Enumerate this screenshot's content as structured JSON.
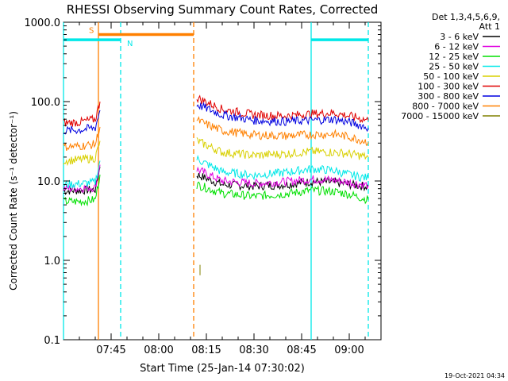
{
  "chart_data": {
    "type": "line",
    "title": "RHESSI Observing Summary Count Rates, Corrected",
    "xlabel": "Start Time (25-Jan-14 07:30:02)",
    "ylabel": "Corrected Count Rate (s⁻¹ detector⁻¹)",
    "xlim": [
      0,
      100
    ],
    "ylim": [
      0.1,
      1000
    ],
    "y_scale": "log",
    "x_ticks": [
      {
        "label": "07:45",
        "minutes": 15
      },
      {
        "label": "08:00",
        "minutes": 30
      },
      {
        "label": "08:15",
        "minutes": 45
      },
      {
        "label": "08:30",
        "minutes": 60
      },
      {
        "label": "08:45",
        "minutes": 75
      },
      {
        "label": "09:00",
        "minutes": 90
      }
    ],
    "y_ticks": [
      {
        "label": "1000.0",
        "value": 1000
      },
      {
        "label": "100.0",
        "value": 100
      },
      {
        "label": "10.0",
        "value": 10
      },
      {
        "label": "1.0",
        "value": 1
      },
      {
        "label": "0.1",
        "value": 0.1
      }
    ],
    "legend": {
      "placement": "right",
      "header": [
        "Det 1,3,4,5,6,9,",
        "Att 1"
      ],
      "entries": [
        {
          "label": "3 - 6 keV",
          "color": "#000000"
        },
        {
          "label": "6 - 12 keV",
          "color": "#e000e0"
        },
        {
          "label": "12 - 25 keV",
          "color": "#00e000"
        },
        {
          "label": "25 - 50 keV",
          "color": "#00e8e8"
        },
        {
          "label": "50 - 100 keV",
          "color": "#d8d000"
        },
        {
          "label": "100 - 300 keV",
          "color": "#e00000"
        },
        {
          "label": "300 - 800 keV",
          "color": "#0000e0"
        },
        {
          "label": "800 - 7000 keV",
          "color": "#ff8000"
        },
        {
          "label": "7000 - 15000 keV",
          "color": "#808000"
        }
      ]
    },
    "series": [
      {
        "name": "3 - 6 keV",
        "color": "#000000",
        "segments": [
          {
            "x": [
              0,
              5,
              10,
              11.5
            ],
            "y": [
              7.5,
              7.6,
              7.8,
              15
            ]
          },
          {
            "x": [
              42,
              50,
              60,
              70,
              78,
              85,
              90,
              96
            ],
            "y": [
              12,
              9.0,
              8.6,
              9.0,
              9.8,
              9.6,
              9.0,
              8.5
            ]
          }
        ]
      },
      {
        "name": "6 - 12 keV",
        "color": "#e000e0",
        "segments": [
          {
            "x": [
              0,
              5,
              10,
              11.5
            ],
            "y": [
              8.0,
              8.1,
              8.3,
              16
            ]
          },
          {
            "x": [
              42,
              50,
              60,
              70,
              78,
              85,
              90,
              96
            ],
            "y": [
              14,
              10,
              9.3,
              9.8,
              10.5,
              10.3,
              9.6,
              8.8
            ]
          }
        ]
      },
      {
        "name": "12 - 25 keV",
        "color": "#00e000",
        "segments": [
          {
            "x": [
              0,
              5,
              10,
              11.5
            ],
            "y": [
              5.5,
              5.5,
              5.8,
              12
            ]
          },
          {
            "x": [
              42,
              50,
              60,
              70,
              78,
              85,
              90,
              96
            ],
            "y": [
              9,
              7.0,
              6.4,
              6.9,
              7.6,
              7.4,
              6.8,
              5.8
            ]
          }
        ]
      },
      {
        "name": "25 - 50 keV",
        "color": "#00e8e8",
        "segments": [
          {
            "x": [
              0,
              5,
              10,
              11.5
            ],
            "y": [
              9.0,
              9.2,
              9.6,
              18
            ]
          },
          {
            "x": [
              42,
              50,
              60,
              70,
              78,
              85,
              90,
              96
            ],
            "y": [
              19,
              13,
              11.8,
              12.8,
              14.2,
              13.6,
              12,
              10.8
            ]
          }
        ]
      },
      {
        "name": "50 - 100 keV",
        "color": "#d8d000",
        "segments": [
          {
            "x": [
              0,
              5,
              10,
              11.5
            ],
            "y": [
              18,
              18.5,
              19.5,
              32
            ]
          },
          {
            "x": [
              42,
              50,
              60,
              70,
              78,
              85,
              90,
              96
            ],
            "y": [
              32,
              23,
              21,
              22,
              23.5,
              23,
              22,
              20
            ]
          }
        ]
      },
      {
        "name": "100 - 300 keV",
        "color": "#e00000",
        "segments": [
          {
            "x": [
              0,
              5,
              10,
              11.5
            ],
            "y": [
              54,
              55,
              60,
              100
            ]
          },
          {
            "x": [
              42,
              50,
              60,
              70,
              78,
              85,
              90,
              96
            ],
            "y": [
              112,
              80,
              68,
              66,
              70,
              72,
              66,
              58
            ]
          }
        ]
      },
      {
        "name": "300 - 800 keV",
        "color": "#0000e0",
        "segments": [
          {
            "x": [
              0,
              5,
              10,
              11.5
            ],
            "y": [
              43,
              44,
              47,
              78
            ]
          },
          {
            "x": [
              42,
              50,
              60,
              70,
              78,
              85,
              90,
              96
            ],
            "y": [
              92,
              68,
              58,
              56,
              58,
              60,
              55,
              47
            ]
          }
        ]
      },
      {
        "name": "800 - 7000 keV",
        "color": "#ff8000",
        "segments": [
          {
            "x": [
              0,
              5,
              10,
              11.5
            ],
            "y": [
              27,
              27.5,
              29,
              48
            ]
          },
          {
            "x": [
              42,
              50,
              60,
              70,
              78,
              85,
              90,
              96
            ],
            "y": [
              58,
              43,
              38,
              37,
              38.5,
              39,
              36,
              31
            ]
          }
        ]
      },
      {
        "name": "7000 - 15000 keV",
        "color": "#808000",
        "segments": [
          {
            "x": [
              43,
              43
            ],
            "y": [
              0.65,
              0.88
            ]
          }
        ]
      }
    ],
    "annotations": {
      "vertical_lines": [
        {
          "x": 0,
          "color": "#00e8e8",
          "style": "solid"
        },
        {
          "x": 11,
          "color": "#ff8000",
          "style": "solid"
        },
        {
          "x": 18,
          "color": "#00e8e8",
          "style": "dashed"
        },
        {
          "x": 41,
          "color": "#ff8000",
          "style": "dashed"
        },
        {
          "x": 78,
          "color": "#00e8e8",
          "style": "solid"
        },
        {
          "x": 96,
          "color": "#00e8e8",
          "style": "dashed"
        }
      ],
      "bars": [
        {
          "x0": 0,
          "x1": 18,
          "y": 600,
          "color": "#00e8e8"
        },
        {
          "x0": 11,
          "x1": 41,
          "y": 700,
          "color": "#ff8000"
        },
        {
          "x0": 78,
          "x1": 96,
          "y": 600,
          "color": "#00e8e8"
        }
      ],
      "bar_labels": [
        {
          "text": "S",
          "x": 8,
          "y": 800,
          "color": "#ff8000"
        },
        {
          "text": "N",
          "x": 20,
          "y": 550,
          "color": "#00e8e8"
        }
      ]
    },
    "footer_timestamp": "19-Oct-2021 04:34"
  }
}
